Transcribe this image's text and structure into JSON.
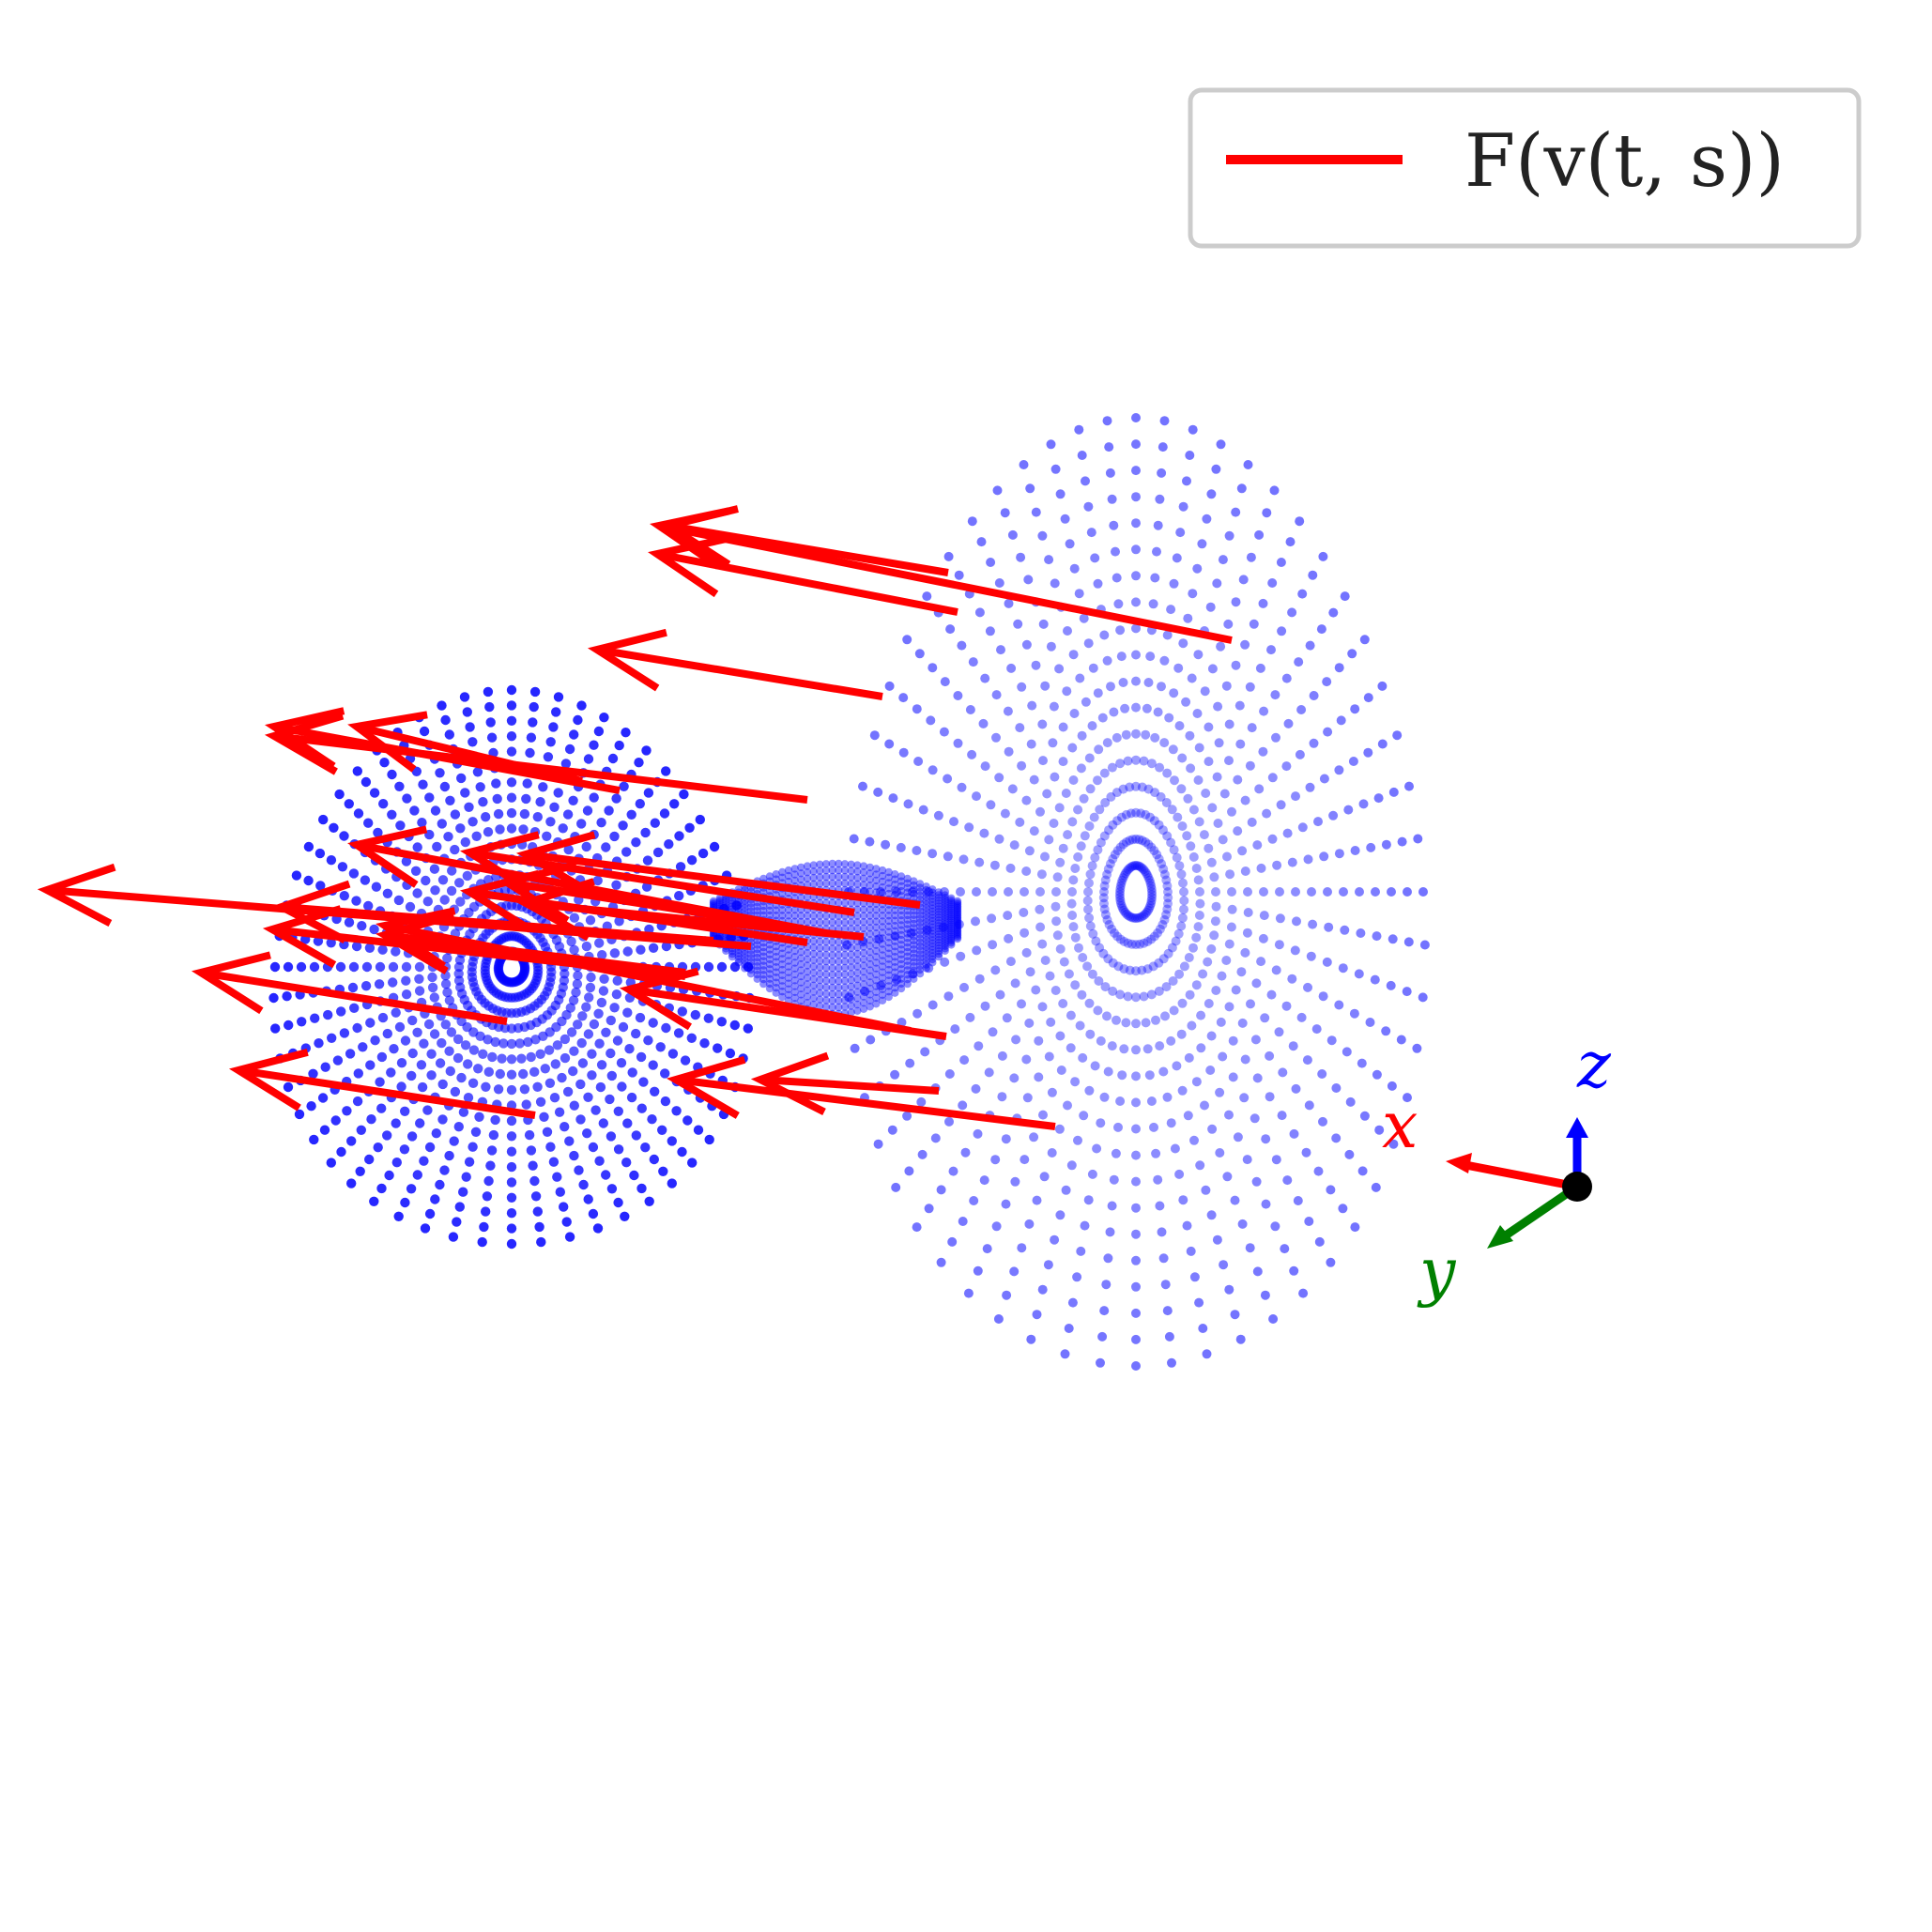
{
  "chart_data": {
    "type": "scatter",
    "title": "",
    "xlabel": "",
    "ylabel": "",
    "grid": false,
    "legend": {
      "placement": "top-right",
      "entries": [
        {
          "label": "F(v(t, s))",
          "color": "#ff0000",
          "glyph": "line"
        }
      ]
    },
    "surface": {
      "description_kind": "two-lobed parametric surface sampled as points",
      "color": "#0000ff",
      "rings": 18,
      "points_per_ring": 56
    },
    "vector_field": {
      "name": "F(v(t, s))",
      "color": "#ff0000",
      "direction_xyz": [
        1,
        0,
        0
      ]
    },
    "orientation_triad": {
      "axes": [
        {
          "label": "x",
          "color": "#ff0000"
        },
        {
          "label": "y",
          "color": "#008000"
        },
        {
          "label": "z",
          "color": "#0000ff"
        }
      ],
      "origin_color": "#000000"
    }
  }
}
